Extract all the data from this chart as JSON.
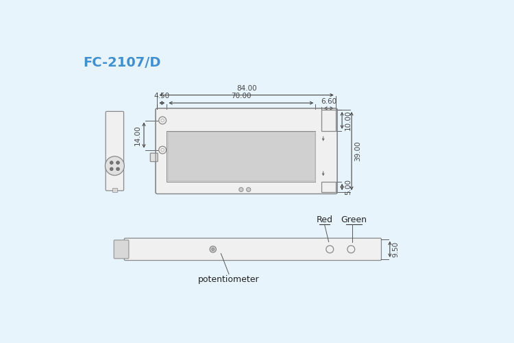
{
  "title": "FC-2107/D",
  "title_color": "#4090d0",
  "bg_color": "#e8f4fc",
  "body_fill": "#f0f0f0",
  "body_edge": "#888888",
  "slot_fill": "#e0e0e0",
  "dim_color": "#444444",
  "dimensions": {
    "w84": "84.00",
    "w70": "70.00",
    "w660": "6.60",
    "h39": "39.00",
    "h14": "14.00",
    "h10": "10.00",
    "h5": "5.00",
    "w450": "4.50",
    "h950": "9.50"
  }
}
